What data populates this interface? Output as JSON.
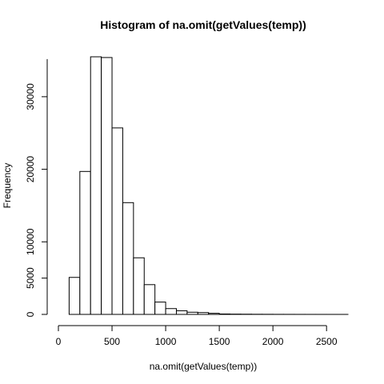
{
  "chart_data": {
    "type": "bar",
    "title": "Histogram of na.omit(getValues(temp))",
    "xlabel": "na.omit(getValues(temp))",
    "ylabel": "Frequency",
    "bin_width": 100,
    "bins": [
      {
        "start": 100,
        "end": 200,
        "count": 5100
      },
      {
        "start": 200,
        "end": 300,
        "count": 19700
      },
      {
        "start": 300,
        "end": 400,
        "count": 35500
      },
      {
        "start": 400,
        "end": 500,
        "count": 35400
      },
      {
        "start": 500,
        "end": 600,
        "count": 25700
      },
      {
        "start": 600,
        "end": 700,
        "count": 15400
      },
      {
        "start": 700,
        "end": 800,
        "count": 7800
      },
      {
        "start": 800,
        "end": 900,
        "count": 4100
      },
      {
        "start": 900,
        "end": 1000,
        "count": 1700
      },
      {
        "start": 1000,
        "end": 1100,
        "count": 800
      },
      {
        "start": 1100,
        "end": 1200,
        "count": 500
      },
      {
        "start": 1200,
        "end": 1300,
        "count": 300
      },
      {
        "start": 1300,
        "end": 1400,
        "count": 250
      },
      {
        "start": 1400,
        "end": 1500,
        "count": 150
      },
      {
        "start": 1500,
        "end": 1600,
        "count": 60
      },
      {
        "start": 1600,
        "end": 1700,
        "count": 40
      },
      {
        "start": 1700,
        "end": 1800,
        "count": 30
      },
      {
        "start": 1800,
        "end": 1900,
        "count": 20
      },
      {
        "start": 1900,
        "end": 2000,
        "count": 15
      },
      {
        "start": 2000,
        "end": 2100,
        "count": 10
      },
      {
        "start": 2100,
        "end": 2200,
        "count": 8
      },
      {
        "start": 2200,
        "end": 2300,
        "count": 6
      },
      {
        "start": 2300,
        "end": 2400,
        "count": 4
      },
      {
        "start": 2400,
        "end": 2500,
        "count": 3
      },
      {
        "start": 2500,
        "end": 2600,
        "count": 2
      },
      {
        "start": 2600,
        "end": 2700,
        "count": 1
      }
    ],
    "xlim": [
      0,
      2700
    ],
    "ylim": [
      0,
      35500
    ],
    "x_ticks": [
      0,
      500,
      1000,
      1500,
      2000,
      2500
    ],
    "x_tick_labels": [
      "0",
      "500",
      "1000",
      "1500",
      "2000",
      "2500"
    ],
    "y_ticks": [
      0,
      5000,
      10000,
      20000,
      30000
    ],
    "y_tick_labels": [
      "0",
      "5000",
      "10000",
      "20000",
      "30000"
    ],
    "grid": false,
    "colors": {
      "bar_fill": "#ffffff",
      "bar_stroke": "#000000"
    }
  }
}
